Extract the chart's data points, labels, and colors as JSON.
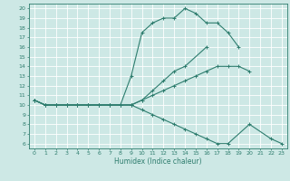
{
  "xlabel": "Humidex (Indice chaleur)",
  "xlim": [
    -0.5,
    23.5
  ],
  "ylim": [
    5.5,
    20.5
  ],
  "yticks": [
    6,
    7,
    8,
    9,
    10,
    11,
    12,
    13,
    14,
    15,
    16,
    17,
    18,
    19,
    20
  ],
  "xticks": [
    0,
    1,
    2,
    3,
    4,
    5,
    6,
    7,
    8,
    9,
    10,
    11,
    12,
    13,
    14,
    15,
    16,
    17,
    18,
    19,
    20,
    21,
    22,
    23
  ],
  "bg_color": "#cde8e5",
  "grid_color": "#ffffff",
  "line_color": "#2e7d6e",
  "line1_x": [
    0,
    1,
    2,
    3,
    4,
    5,
    6,
    7,
    8,
    9,
    10,
    11,
    12,
    13,
    14,
    15,
    16,
    17,
    18,
    19
  ],
  "line1_y": [
    10.5,
    10.0,
    10.0,
    10.0,
    10.0,
    10.0,
    10.0,
    10.0,
    10.0,
    13.0,
    17.5,
    18.5,
    19.0,
    19.0,
    20.0,
    19.5,
    18.5,
    18.5,
    17.5,
    16.0
  ],
  "line2_x": [
    0,
    1,
    2,
    3,
    4,
    5,
    6,
    7,
    8,
    9,
    10,
    11,
    12,
    13,
    14,
    15,
    16,
    17,
    18,
    19,
    20
  ],
  "line2_y": [
    10.5,
    10.0,
    10.0,
    10.0,
    10.0,
    10.0,
    10.0,
    10.0,
    10.0,
    10.0,
    10.5,
    11.0,
    11.5,
    12.0,
    12.5,
    13.0,
    13.5,
    14.0,
    14.0,
    14.0,
    13.5
  ],
  "line3_x": [
    0,
    1,
    2,
    3,
    4,
    5,
    6,
    7,
    8,
    9,
    10,
    11,
    12,
    13,
    14,
    16
  ],
  "line3_y": [
    10.5,
    10.0,
    10.0,
    10.0,
    10.0,
    10.0,
    10.0,
    10.0,
    10.0,
    10.0,
    10.5,
    11.5,
    12.5,
    13.5,
    14.0,
    16.0
  ],
  "line4_x": [
    0,
    1,
    2,
    3,
    4,
    5,
    6,
    7,
    8,
    9,
    10,
    11,
    12,
    13,
    14,
    15,
    16,
    17,
    18,
    20,
    22,
    23
  ],
  "line4_y": [
    10.5,
    10.0,
    10.0,
    10.0,
    10.0,
    10.0,
    10.0,
    10.0,
    10.0,
    10.0,
    9.5,
    9.0,
    8.5,
    8.0,
    7.5,
    7.0,
    6.5,
    6.0,
    6.0,
    8.0,
    6.5,
    6.0
  ],
  "lw": 0.8,
  "ms": 2.5
}
